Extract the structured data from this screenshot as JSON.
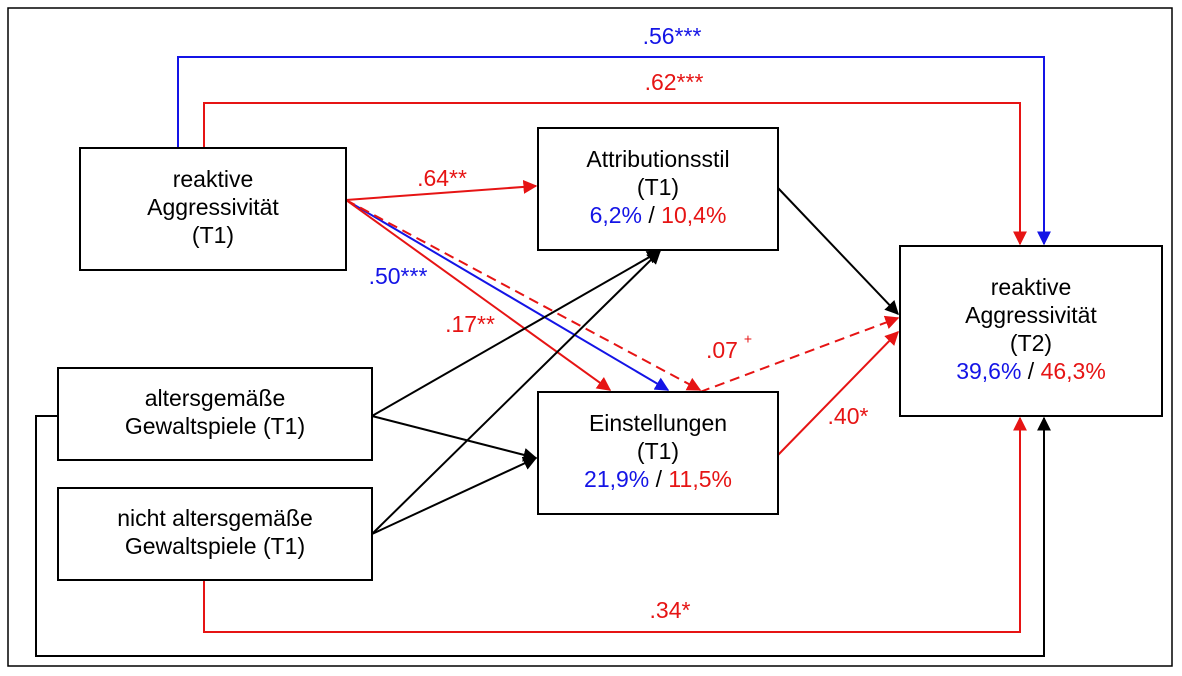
{
  "nodes": [
    {
      "lines": [
        "reaktive",
        "Aggressivität",
        "(T1)"
      ]
    },
    {
      "lines": [
        "Attributionsstil",
        "(T1)"
      ],
      "share_a": "6,2%",
      "separator": "/",
      "share_b": "10,4%"
    },
    {
      "lines": [
        "altersgemäße",
        "Gewaltspiele (T1)"
      ]
    },
    {
      "lines": [
        "nicht altersgemäße",
        "Gewaltspiele (T1)"
      ]
    },
    {
      "lines": [
        "Einstellungen",
        "(T1)"
      ],
      "share_a": "21,9%",
      "separator": "/",
      "share_b": "11,5%"
    },
    {
      "lines": [
        "reaktive",
        "Aggressivität",
        "(T2)"
      ],
      "share_a": "39,6%",
      "separator": "/",
      "share_b": "46,3%"
    }
  ],
  "edges": [
    {
      "label": ".56***"
    },
    {
      "label": ".62***"
    },
    {
      "label": ".64**"
    },
    {
      "label": ".50***"
    },
    {
      "label": ".17**"
    },
    {
      "label": ".07",
      "sup": "+"
    },
    {
      "label": ".40*"
    },
    {
      "label": ".34*"
    }
  ]
}
